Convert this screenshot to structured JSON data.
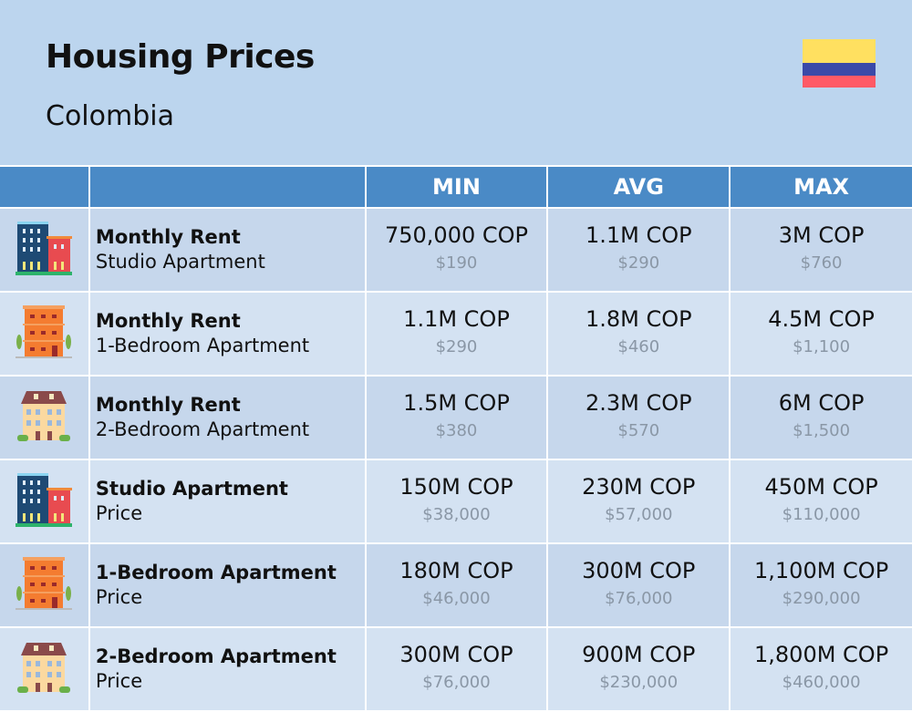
{
  "header": {
    "title": "Housing Prices",
    "subtitle": "Colombia",
    "flag_colors": [
      "#ffe060",
      "#3b4aa8",
      "#ff5a66"
    ]
  },
  "columns": [
    "",
    "",
    "MIN",
    "AVG",
    "MAX"
  ],
  "rows": [
    {
      "icon": "highrise-building-icon",
      "title": "Monthly Rent",
      "subtitle": "Studio Apartment",
      "min": {
        "local": "750,000 COP",
        "usd": "$190"
      },
      "avg": {
        "local": "1.1M COP",
        "usd": "$290"
      },
      "max": {
        "local": "3M COP",
        "usd": "$760"
      }
    },
    {
      "icon": "orange-apartment-building-icon",
      "title": "Monthly Rent",
      "subtitle": "1-Bedroom Apartment",
      "min": {
        "local": "1.1M COP",
        "usd": "$290"
      },
      "avg": {
        "local": "1.8M COP",
        "usd": "$460"
      },
      "max": {
        "local": "4.5M COP",
        "usd": "$1,100"
      }
    },
    {
      "icon": "house-building-icon",
      "title": "Monthly Rent",
      "subtitle": "2-Bedroom Apartment",
      "min": {
        "local": "1.5M COP",
        "usd": "$380"
      },
      "avg": {
        "local": "2.3M COP",
        "usd": "$570"
      },
      "max": {
        "local": "6M COP",
        "usd": "$1,500"
      }
    },
    {
      "icon": "highrise-building-icon",
      "title": "Studio Apartment",
      "subtitle": "Price",
      "min": {
        "local": "150M COP",
        "usd": "$38,000"
      },
      "avg": {
        "local": "230M COP",
        "usd": "$57,000"
      },
      "max": {
        "local": "450M COP",
        "usd": "$110,000"
      }
    },
    {
      "icon": "orange-apartment-building-icon",
      "title": "1-Bedroom Apartment",
      "subtitle": "Price",
      "min": {
        "local": "180M COP",
        "usd": "$46,000"
      },
      "avg": {
        "local": "300M COP",
        "usd": "$76,000"
      },
      "max": {
        "local": "1,100M COP",
        "usd": "$290,000"
      }
    },
    {
      "icon": "house-building-icon",
      "title": "2-Bedroom Apartment",
      "subtitle": "Price",
      "min": {
        "local": "300M COP",
        "usd": "$76,000"
      },
      "avg": {
        "local": "900M COP",
        "usd": "$230,000"
      },
      "max": {
        "local": "1,800M COP",
        "usd": "$460,000"
      }
    }
  ]
}
